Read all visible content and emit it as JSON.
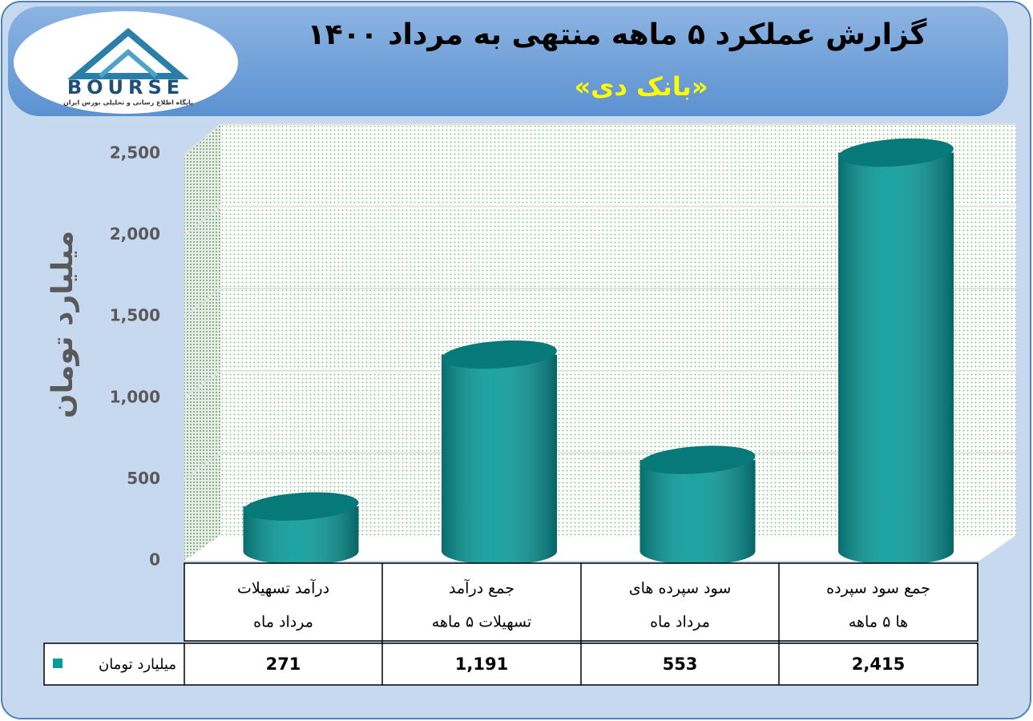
{
  "logo": {
    "text": "BOURSE",
    "tagline": "پایگاه اطلاع رسانی و تحلیلی بورس ایران"
  },
  "chart_data": {
    "type": "bar",
    "title": "گزارش عملکرد ۵ ماهه منتهی به مرداد ۱۴۰۰",
    "subtitle": "«بانک دی»",
    "y_label": "میلیارد تومان",
    "categories": [
      [
        "درآمد تسهیلات",
        "مرداد ماه"
      ],
      [
        "جمع درآمد",
        "تسهیلات ۵ ماهه"
      ],
      [
        "سود سپرده های",
        "مرداد ماه"
      ],
      [
        "جمع سود سپرده",
        "ها ۵ ماهه"
      ]
    ],
    "series": [
      {
        "name": "میلیارد تومان",
        "color": "#0a9b9b",
        "values": [
          271,
          1191,
          553,
          2415
        ],
        "value_labels": [
          "271",
          "1,191",
          "553",
          "2,415"
        ]
      }
    ],
    "ylim": [
      0,
      2500
    ],
    "yticks": [
      0,
      500,
      {
        "value": 1000,
        "label": "1,000"
      },
      {
        "value": 1500,
        "label": "1,500"
      },
      {
        "value": 2000,
        "label": "2,000"
      },
      {
        "value": 2500,
        "label": "2,500"
      }
    ],
    "grid": true
  }
}
